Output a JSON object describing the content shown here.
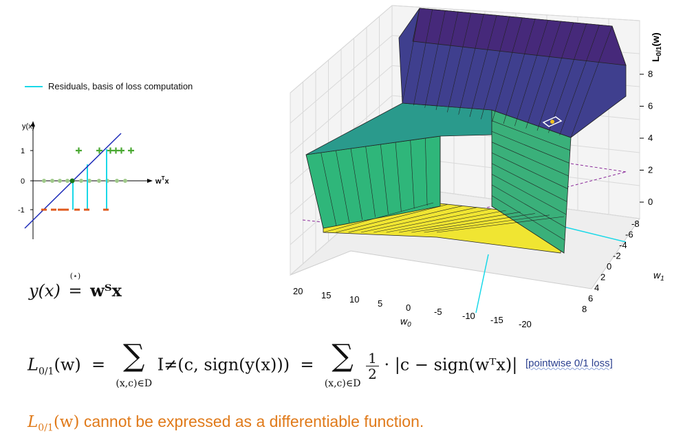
{
  "legend": {
    "label": "Residuals, basis of loss computation",
    "color": "#18d8e8"
  },
  "small_plot": {
    "ylabel": "y(x)",
    "xlabel": "w",
    "xlabel_sup": "T",
    "xlabel_tail": "x",
    "y_ticks": [
      "1",
      "0",
      "-1"
    ]
  },
  "surface_plot": {
    "zlabel": "L",
    "zlabel_sub": "0/1",
    "zlabel_tail": "(w)",
    "z_ticks": [
      "8",
      "6",
      "4",
      "2",
      "0"
    ],
    "w0_label": "w",
    "w0_sub": "0",
    "w0_ticks": [
      "20",
      "15",
      "10",
      "5",
      "0",
      "-5",
      "-10",
      "-15",
      "-20"
    ],
    "w1_label": "w",
    "w1_sub": "1",
    "w1_ticks": [
      "-8",
      "-6",
      "-4",
      "-2",
      "0",
      "2",
      "4",
      "6",
      "8"
    ]
  },
  "equations": {
    "y_def_lhs": "y(x)",
    "y_def_mark": "(⋆)",
    "y_def_rhs": "wᵀx",
    "loss_lhs": "L",
    "loss_lhs_sub": "0/1",
    "loss_lhs_tail": "(w)",
    "sum_index": "(x,c)∈D",
    "term1": "I≠(c, sign(y(x)))",
    "frac_num": "1",
    "frac_den": "2",
    "term2": "· |c − sign(wᵀx)|"
  },
  "pointwise_label": "[pointwise 0/1 loss]",
  "note": {
    "symbol": "L",
    "symbol_sub": "0/1",
    "symbol_tail": "(w)",
    "text": "cannot be expressed as a differentiable function."
  },
  "colors": {
    "positive": "#4aa832",
    "negative": "#e0591c",
    "line": "#1c2ab8",
    "residual": "#18d8e8",
    "accent": "#e07a1a"
  }
}
